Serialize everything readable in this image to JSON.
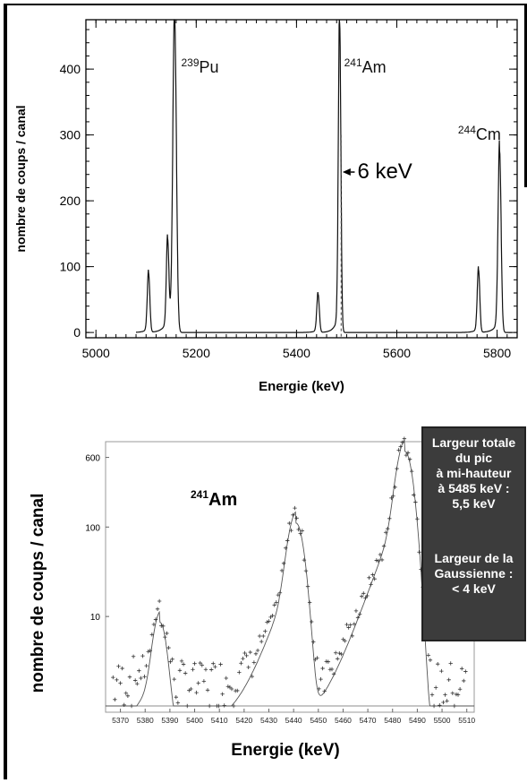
{
  "chart_data": [
    {
      "type": "line",
      "xlabel": "Energie (keV)",
      "ylabel": "nombre de coups / canal",
      "xlim": [
        4980,
        5840
      ],
      "ylim": [
        -8,
        475
      ],
      "xticks": [
        5000,
        5200,
        5400,
        5600,
        5800
      ],
      "yticks": [
        0,
        100,
        200,
        300,
        400
      ],
      "peaks": [
        {
          "x": 5105,
          "y": 90
        },
        {
          "x": 5143,
          "y": 132
        },
        {
          "x": 5157,
          "y": 475
        },
        {
          "x": 5443,
          "y": 58
        },
        {
          "x": 5486,
          "y": 470
        },
        {
          "x": 5763,
          "y": 95
        },
        {
          "x": 5805,
          "y": 275
        }
      ],
      "annotations": [
        {
          "text_sup": "239",
          "text": "Pu",
          "x": 5170,
          "y": 395
        },
        {
          "text_sup": "241",
          "text": "Am",
          "x": 5495,
          "y": 395
        },
        {
          "text_sup": "244",
          "text": "Cm",
          "x": 5722,
          "y": 293
        },
        {
          "text": "6 keV",
          "x": 5500,
          "y": 245
        }
      ]
    },
    {
      "type": "scatter",
      "xlabel": "Energie (keV)",
      "ylabel": "nombre de coups / canal",
      "xlim": [
        5364,
        5513
      ],
      "yscale": "log",
      "xticks": [
        5370,
        5380,
        5390,
        5400,
        5410,
        5420,
        5430,
        5440,
        5450,
        5460,
        5470,
        5480,
        5490,
        5500,
        5510
      ],
      "yticks": [
        10,
        100,
        600
      ],
      "fit_peaks": [
        {
          "x": 5386,
          "y": 8
        },
        {
          "x": 5441,
          "y": 110
        },
        {
          "x": 5485,
          "y": 700
        }
      ],
      "annotations": [
        {
          "text_sup": "241",
          "text": "Am"
        }
      ]
    }
  ],
  "annotation_box": {
    "lines_top": [
      "Largeur totale",
      "du pic",
      "à mi-hauteur",
      "à 5485 keV :",
      "5,5 keV"
    ],
    "lines_bottom": [
      "Largeur de la",
      "Gaussienne :",
      "< 4 keV"
    ]
  }
}
